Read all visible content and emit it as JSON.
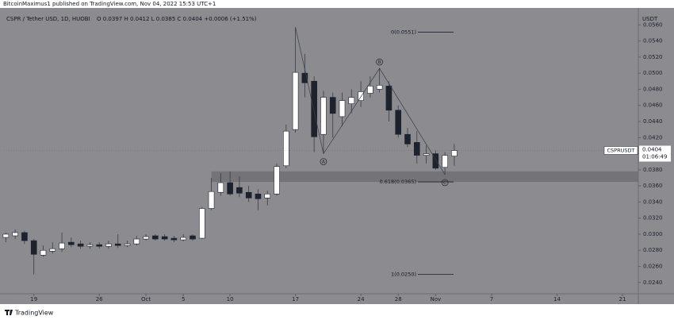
{
  "chart_data": {
    "type": "candlestick",
    "credit": "BitcoinMaximus1 published on TradingView.com, Nov 04, 2022 15:53 UTC+1",
    "title": "CSPR / Tether USD, 1D, HUOBI",
    "ohlc_text": "O 0.0397  H 0.0412  L 0.0385  C 0.0404  +0.0006 (+1.51%)",
    "currency": "USDT",
    "symbol": "CSPRUSDT",
    "last_price": "0.0404",
    "countdown": "01:06:49",
    "brand": "TradingView",
    "up_color": "#ffffff",
    "down_color": "#1e222d",
    "wick_color": "#3a3d45",
    "x": [
      -3,
      -2,
      -1,
      0,
      1,
      2,
      3,
      4,
      5,
      6,
      7,
      8,
      9,
      10,
      11,
      12,
      13,
      14,
      15,
      16,
      17,
      18,
      19,
      20,
      21,
      22,
      23,
      24,
      25,
      26,
      27,
      28,
      29,
      30,
      31,
      32,
      33,
      34,
      35,
      36,
      37,
      38,
      39,
      40,
      41,
      42,
      43,
      44,
      45
    ],
    "open": [
      0.0296,
      0.0298,
      0.0302,
      0.0292,
      0.0274,
      0.0279,
      0.0282,
      0.029,
      0.0288,
      0.0285,
      0.0287,
      0.0285,
      0.0288,
      0.0286,
      0.0288,
      0.0294,
      0.0298,
      0.0297,
      0.0295,
      0.0293,
      0.0298,
      0.0295,
      0.0332,
      0.0352,
      0.0364,
      0.0358,
      0.0352,
      0.035,
      0.0345,
      0.035,
      0.0385,
      0.043,
      0.05,
      0.049,
      0.0424,
      0.047,
      0.0446,
      0.0462,
      0.0466,
      0.0475,
      0.048,
      0.0484,
      0.0454,
      0.0424,
      0.0414,
      0.0398,
      0.04,
      0.0383,
      0.0397
    ],
    "high": [
      0.0302,
      0.0306,
      0.0304,
      0.0294,
      0.0286,
      0.029,
      0.0302,
      0.0296,
      0.0292,
      0.029,
      0.029,
      0.0292,
      0.03,
      0.0292,
      0.0298,
      0.03,
      0.03,
      0.03,
      0.0298,
      0.03,
      0.03,
      0.0334,
      0.037,
      0.0376,
      0.0378,
      0.0372,
      0.036,
      0.0356,
      0.0354,
      0.0388,
      0.0436,
      0.0557,
      0.0524,
      0.0496,
      0.0478,
      0.0476,
      0.0476,
      0.048,
      0.049,
      0.0496,
      0.0506,
      0.049,
      0.046,
      0.0432,
      0.0428,
      0.041,
      0.0404,
      0.0402,
      0.0412
    ],
    "low": [
      0.029,
      0.0294,
      0.0288,
      0.025,
      0.0272,
      0.0276,
      0.0278,
      0.0284,
      0.0282,
      0.0282,
      0.0282,
      0.0282,
      0.0283,
      0.0284,
      0.0286,
      0.0292,
      0.0292,
      0.0292,
      0.029,
      0.0291,
      0.0292,
      0.0294,
      0.033,
      0.0348,
      0.0348,
      0.0346,
      0.034,
      0.033,
      0.0336,
      0.0348,
      0.0382,
      0.0426,
      0.047,
      0.0402,
      0.04,
      0.042,
      0.0434,
      0.045,
      0.0458,
      0.047,
      0.0476,
      0.044,
      0.042,
      0.0408,
      0.0388,
      0.0388,
      0.038,
      0.0374,
      0.0385
    ],
    "close": [
      0.03,
      0.0302,
      0.0292,
      0.0275,
      0.028,
      0.0282,
      0.0289,
      0.0287,
      0.0285,
      0.0287,
      0.0285,
      0.0288,
      0.0286,
      0.0288,
      0.0294,
      0.0297,
      0.0294,
      0.0294,
      0.0293,
      0.0296,
      0.0294,
      0.0332,
      0.0353,
      0.0364,
      0.035,
      0.0351,
      0.0345,
      0.0344,
      0.035,
      0.0384,
      0.0428,
      0.0501,
      0.0488,
      0.0421,
      0.047,
      0.045,
      0.0466,
      0.047,
      0.0477,
      0.0484,
      0.0485,
      0.0454,
      0.0424,
      0.0412,
      0.0398,
      0.04,
      0.0382,
      0.0398,
      0.0404
    ],
    "xlim": [
      -3.2,
      64.7
    ],
    "xticks": [
      {
        "value": 0,
        "label": "19"
      },
      {
        "value": 7,
        "label": "26"
      },
      {
        "value": 12,
        "label": "Oct"
      },
      {
        "value": 16,
        "label": "5"
      },
      {
        "value": 21,
        "label": "10"
      },
      {
        "value": 28,
        "label": "17"
      },
      {
        "value": 35,
        "label": "24"
      },
      {
        "value": 39,
        "label": "28"
      },
      {
        "value": 43,
        "label": "Nov"
      },
      {
        "value": 49,
        "label": "7"
      },
      {
        "value": 56,
        "label": "14"
      },
      {
        "value": 63,
        "label": "21"
      }
    ],
    "ylim": [
      0.0226,
      0.0581
    ],
    "yticks": [
      {
        "value": 0.024,
        "label": "0.0240"
      },
      {
        "value": 0.026,
        "label": "0.0260"
      },
      {
        "value": 0.028,
        "label": "0.0280"
      },
      {
        "value": 0.03,
        "label": "0.0300"
      },
      {
        "value": 0.032,
        "label": "0.0320"
      },
      {
        "value": 0.034,
        "label": "0.0340"
      },
      {
        "value": 0.036,
        "label": "0.0360"
      },
      {
        "value": 0.038,
        "label": "0.0380"
      },
      {
        "value": 0.04,
        "label": "0.0400"
      },
      {
        "value": 0.042,
        "label": "0.0420"
      },
      {
        "value": 0.044,
        "label": "0.0440"
      },
      {
        "value": 0.046,
        "label": "0.0460"
      },
      {
        "value": 0.048,
        "label": "0.0480"
      },
      {
        "value": 0.05,
        "label": "0.0500"
      },
      {
        "value": 0.052,
        "label": "0.0520"
      },
      {
        "value": 0.054,
        "label": "0.0540"
      },
      {
        "value": 0.056,
        "label": "0.0560"
      }
    ],
    "zone": [
      0.0365,
      0.0378
    ],
    "fib_levels": [
      {
        "value": 0.0551,
        "label": "0(0.0551)"
      },
      {
        "value": 0.0365,
        "label": "0.618(0.0365)"
      },
      {
        "value": 0.025,
        "label": "1(0.0250)"
      }
    ],
    "wave_labels": [
      "A",
      "B",
      "C"
    ]
  }
}
